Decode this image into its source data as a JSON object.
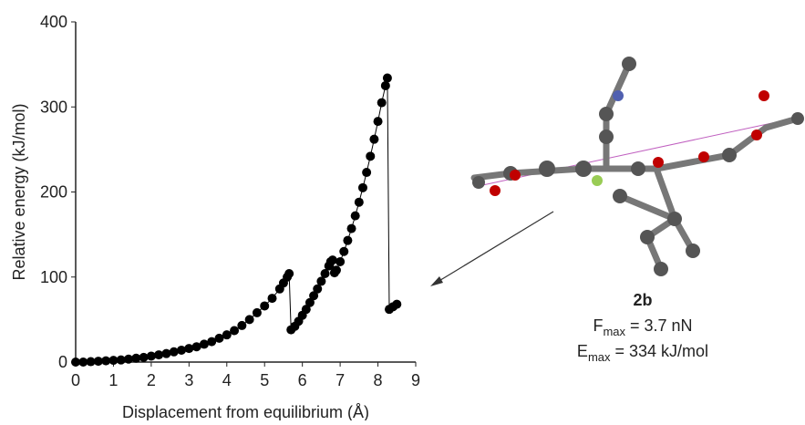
{
  "chart_data": {
    "type": "scatter",
    "x_label": "Displacement from equilibrium (Å)",
    "y_label": "Relative energy (kJ/mol)",
    "xlim": [
      0,
      9
    ],
    "xticks": [
      0,
      1,
      2,
      3,
      4,
      5,
      6,
      7,
      8,
      9
    ],
    "ylim": [
      0,
      400
    ],
    "yticks": [
      0,
      100,
      200,
      300,
      400
    ],
    "color": "#000000",
    "connect_line": true,
    "series": [
      {
        "name": "2b",
        "color": "#000000",
        "x": [
          0,
          0.2,
          0.4,
          0.6,
          0.8,
          1.0,
          1.2,
          1.4,
          1.6,
          1.8,
          2.0,
          2.2,
          2.4,
          2.6,
          2.8,
          3.0,
          3.2,
          3.4,
          3.6,
          3.8,
          4.0,
          4.2,
          4.4,
          4.6,
          4.8,
          5.0,
          5.2,
          5.4,
          5.5,
          5.6,
          5.65,
          5.7,
          5.8,
          5.9,
          6.0,
          6.1,
          6.2,
          6.3,
          6.4,
          6.5,
          6.6,
          6.7,
          6.75,
          6.8,
          6.85,
          6.9,
          7.0,
          7.1,
          7.2,
          7.3,
          7.4,
          7.5,
          7.6,
          7.7,
          7.8,
          7.9,
          8.0,
          8.1,
          8.2,
          8.25,
          8.3,
          8.4,
          8.5
        ],
        "values": [
          0,
          0,
          0.5,
          1,
          1.5,
          2,
          2.5,
          3.5,
          4.5,
          5.5,
          7,
          8.5,
          10,
          12,
          14,
          16,
          18,
          21,
          24,
          28,
          32,
          37,
          43,
          50,
          58,
          66,
          75,
          86,
          93,
          100,
          104,
          38,
          42,
          48,
          55,
          62,
          70,
          78,
          86,
          95,
          104,
          113,
          118,
          120,
          105,
          108,
          118,
          130,
          143,
          157,
          172,
          188,
          205,
          223,
          242,
          262,
          283,
          305,
          325,
          334,
          62,
          65,
          68
        ]
      }
    ],
    "annotation": {
      "label": "2b",
      "lines": [
        {
          "main": "F",
          "sub": "max",
          "rest": " = 3.7 nN"
        },
        {
          "main": "E",
          "sub": "max",
          "rest": " = 334 kJ/mol"
        }
      ]
    }
  }
}
